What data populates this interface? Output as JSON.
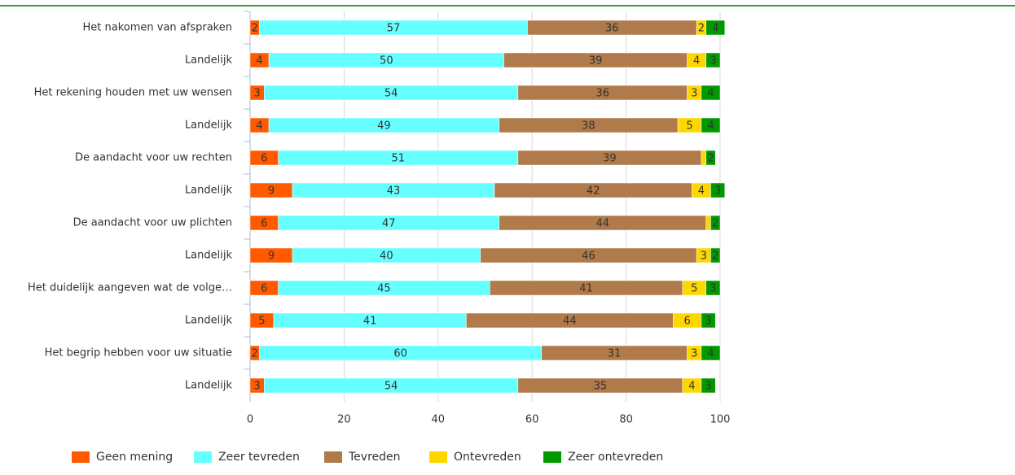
{
  "chart_data": {
    "type": "stacked_barh",
    "categories": [
      "Het nakomen van afspraken",
      "Landelijk",
      "Het rekening houden met uw wensen",
      "Landelijk",
      "De aandacht voor uw rechten",
      "Landelijk",
      "De aandacht voor uw plichten",
      "Landelijk",
      "Het duidelijk aangeven wat de volge…",
      "Landelijk",
      "Het begrip hebben voor uw situatie",
      "Landelijk"
    ],
    "series": [
      {
        "name": "Geen mening",
        "color": "#ff5a00",
        "values": [
          2,
          4,
          3,
          4,
          6,
          9,
          6,
          9,
          6,
          5,
          2,
          3
        ]
      },
      {
        "name": "Zeer tevreden",
        "color": "#66ffff",
        "values": [
          57,
          50,
          54,
          49,
          51,
          43,
          47,
          40,
          45,
          41,
          60,
          54
        ]
      },
      {
        "name": "Tevreden",
        "color": "#b07a4a",
        "values": [
          36,
          39,
          36,
          38,
          39,
          42,
          44,
          46,
          41,
          44,
          31,
          35
        ]
      },
      {
        "name": "Ontevreden",
        "color": "#ffd700",
        "values": [
          2,
          4,
          3,
          5,
          1,
          4,
          1,
          3,
          5,
          6,
          3,
          4
        ]
      },
      {
        "name": "Zeer ontevreden",
        "color": "#009900",
        "values": [
          4,
          3,
          4,
          4,
          2,
          3,
          2,
          2,
          3,
          3,
          4,
          3
        ]
      }
    ],
    "xlim": [
      0,
      100
    ],
    "xticks": [
      0,
      20,
      40,
      60,
      80,
      100
    ],
    "grid": true,
    "legend": "bottom"
  }
}
